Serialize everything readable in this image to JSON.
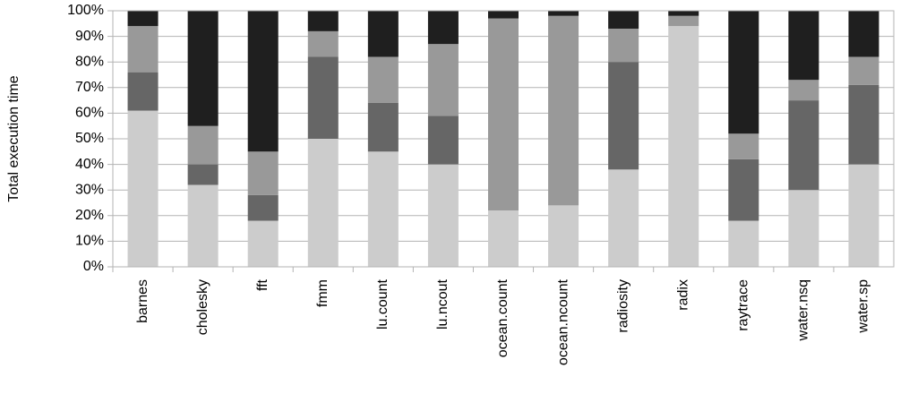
{
  "chart_data": {
    "type": "stacked_bar",
    "y_label": "Total execution time",
    "categories": [
      "barnes",
      "cholesky",
      "fft",
      "fmm",
      "lu.count",
      "lu.ncout",
      "ocean.count",
      "ocean.ncount",
      "radiosity",
      "radix",
      "raytrace",
      "water.nsq",
      "water.sp"
    ],
    "series": [
      {
        "color": "#cccccc",
        "values": [
          61,
          32,
          18,
          50,
          45,
          40,
          22,
          24,
          38,
          94,
          18,
          30,
          40
        ]
      },
      {
        "color": "#666666",
        "values": [
          15,
          8,
          10,
          32,
          19,
          19,
          0,
          0,
          42,
          0,
          24,
          35,
          31
        ]
      },
      {
        "color": "#999999",
        "values": [
          18,
          15,
          17,
          10,
          18,
          28,
          75,
          74,
          13,
          4,
          10,
          8,
          11
        ]
      },
      {
        "color": "#1f1f1f",
        "values": [
          6,
          45,
          55,
          8,
          18,
          13,
          3,
          2,
          7,
          2,
          48,
          27,
          18
        ]
      }
    ],
    "ylim": [
      0,
      100
    ],
    "yticks": [
      {
        "value": 0,
        "label": "0%"
      },
      {
        "value": 10,
        "label": "10%"
      },
      {
        "value": 20,
        "label": "20%"
      },
      {
        "value": 30,
        "label": "30%"
      },
      {
        "value": 40,
        "label": "40%"
      },
      {
        "value": 50,
        "label": "50%"
      },
      {
        "value": 60,
        "label": "60%"
      },
      {
        "value": 70,
        "label": "70%"
      },
      {
        "value": 80,
        "label": "80%"
      },
      {
        "value": 90,
        "label": "90%"
      },
      {
        "value": 100,
        "label": "100%"
      }
    ],
    "grid": true
  }
}
